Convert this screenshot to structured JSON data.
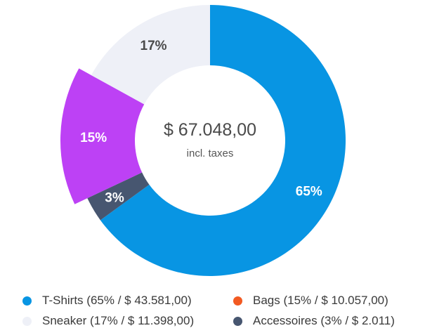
{
  "chart_data": {
    "type": "pie",
    "center": {
      "value": "$ 67.048,00",
      "caption": "incl. taxes"
    },
    "slices": [
      {
        "label": "T-Shirts",
        "percent": 65,
        "display": "65%",
        "color": "#0895e3",
        "label_color": "#ffffff"
      },
      {
        "label": "Accessoires",
        "percent": 3,
        "display": "3%",
        "color": "#475670",
        "label_color": "#ffffff"
      },
      {
        "label": "Bags",
        "percent": 15,
        "display": "15%",
        "color": "#bd41f5",
        "label_color": "#ffffff"
      },
      {
        "label": "Sneaker",
        "percent": 17,
        "display": "17%",
        "color": "#eef0f7",
        "label_color": "#4a4a4a"
      }
    ],
    "legend": [
      {
        "text": "T-Shirts (65% / $ 43.581,00)",
        "color": "#0895e3"
      },
      {
        "text": "Bags (15% / $ 10.057,00)",
        "color": "#f25a22"
      },
      {
        "text": "Sneaker (17% / $ 11.398,00)",
        "color": "#eef0f7"
      },
      {
        "text": "Accessoires (3% / $ 2.011)",
        "color": "#475670"
      }
    ]
  }
}
